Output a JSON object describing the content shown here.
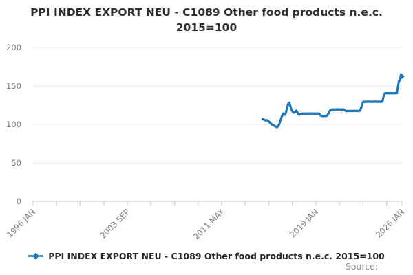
{
  "title": {
    "line1": "PPI INDEX EXPORT NEU - C1089 Other food products n.e.c.",
    "line2": "2015=100"
  },
  "legend": {
    "label": "PPI INDEX EXPORT NEU - C1089 Other food products n.e.c. 2015=100"
  },
  "footer": {
    "source_label": "Source:"
  },
  "chart_data": {
    "type": "line",
    "title": "PPI INDEX EXPORT NEU - C1089 Other food products n.e.c. 2015=100",
    "xlabel": "",
    "ylabel": "",
    "ylim": [
      0,
      200
    ],
    "y_ticks": [
      0,
      50,
      100,
      150,
      200
    ],
    "grid": true,
    "legend_position": "bottom",
    "colors": {
      "line": "#1f77b4",
      "grid": "#e8e8e8",
      "axis": "#c3cdde",
      "tick_text": "#7d7d7d"
    },
    "x_axis": {
      "start": "1996 JAN",
      "end": "2026 JAN",
      "unit": "month",
      "total_months": 360,
      "tick_months": [
        0,
        23,
        46,
        69,
        92,
        115,
        138,
        161,
        184,
        207,
        230,
        253,
        276,
        299,
        322,
        345,
        360
      ],
      "labels": [
        {
          "month": 0,
          "text": "1996 JAN"
        },
        {
          "month": 92,
          "text": "2003 SEP"
        },
        {
          "month": 184,
          "text": "2011 MAY"
        },
        {
          "month": 276,
          "text": "2019 JAN"
        },
        {
          "month": 360,
          "text": "2026 JAN"
        }
      ]
    },
    "series": [
      {
        "name": "PPI INDEX EXPORT NEU - C1089 Other food products n.e.c. 2015=100",
        "color": "#1f77b4",
        "start_month": 224,
        "values": [
          107,
          106.4,
          105.7,
          105.2,
          105.5,
          104.9,
          103.8,
          102.6,
          101.2,
          99.9,
          99.1,
          98.5,
          97.9,
          97.1,
          96.5,
          97.3,
          99.6,
          103.2,
          107.6,
          111.2,
          114,
          113.1,
          112.5,
          116.6,
          122.2,
          126.6,
          128.1,
          124.2,
          119.6,
          117.1,
          115.8,
          115.3,
          116.6,
          118,
          115.6,
          113.1,
          112.6,
          113,
          113.6,
          113.9,
          114.1,
          114,
          114.2,
          113.9,
          114.1,
          114.2,
          114,
          114.1,
          114,
          114.2,
          114.1,
          113.9,
          114.1,
          114.2,
          114,
          114.1,
          112.6,
          111.3,
          110.9,
          111,
          111.1,
          110.9,
          111,
          111.6,
          113.6,
          116.1,
          118.2,
          119.1,
          119.4,
          119.5,
          119.4,
          119.5,
          119.6,
          119.4,
          119.5,
          119.5,
          119.4,
          119.5,
          119.4,
          119.5,
          118.4,
          117.6,
          117.4,
          117.5,
          117.4,
          117.5,
          117.6,
          117.4,
          117.5,
          117.4,
          117.5,
          117.6,
          117.5,
          117.4,
          117.5,
          117.9,
          121.1,
          125.2,
          128.9,
          129.4,
          129.5,
          129.4,
          129.5,
          129.6,
          129.5,
          129.4,
          129.5,
          129.5,
          129.4,
          129.5,
          129.6,
          129.5,
          129.4,
          129.5,
          129.5,
          129.4,
          129.5,
          129.9,
          136.2,
          140.1,
          140.5,
          140.4,
          140.5,
          140.6,
          140.5,
          140.4,
          140.5,
          140.5,
          140.4,
          140.5,
          140.6,
          140.9,
          148.2,
          156.4,
          157,
          164.8,
          162.3
        ]
      }
    ]
  }
}
